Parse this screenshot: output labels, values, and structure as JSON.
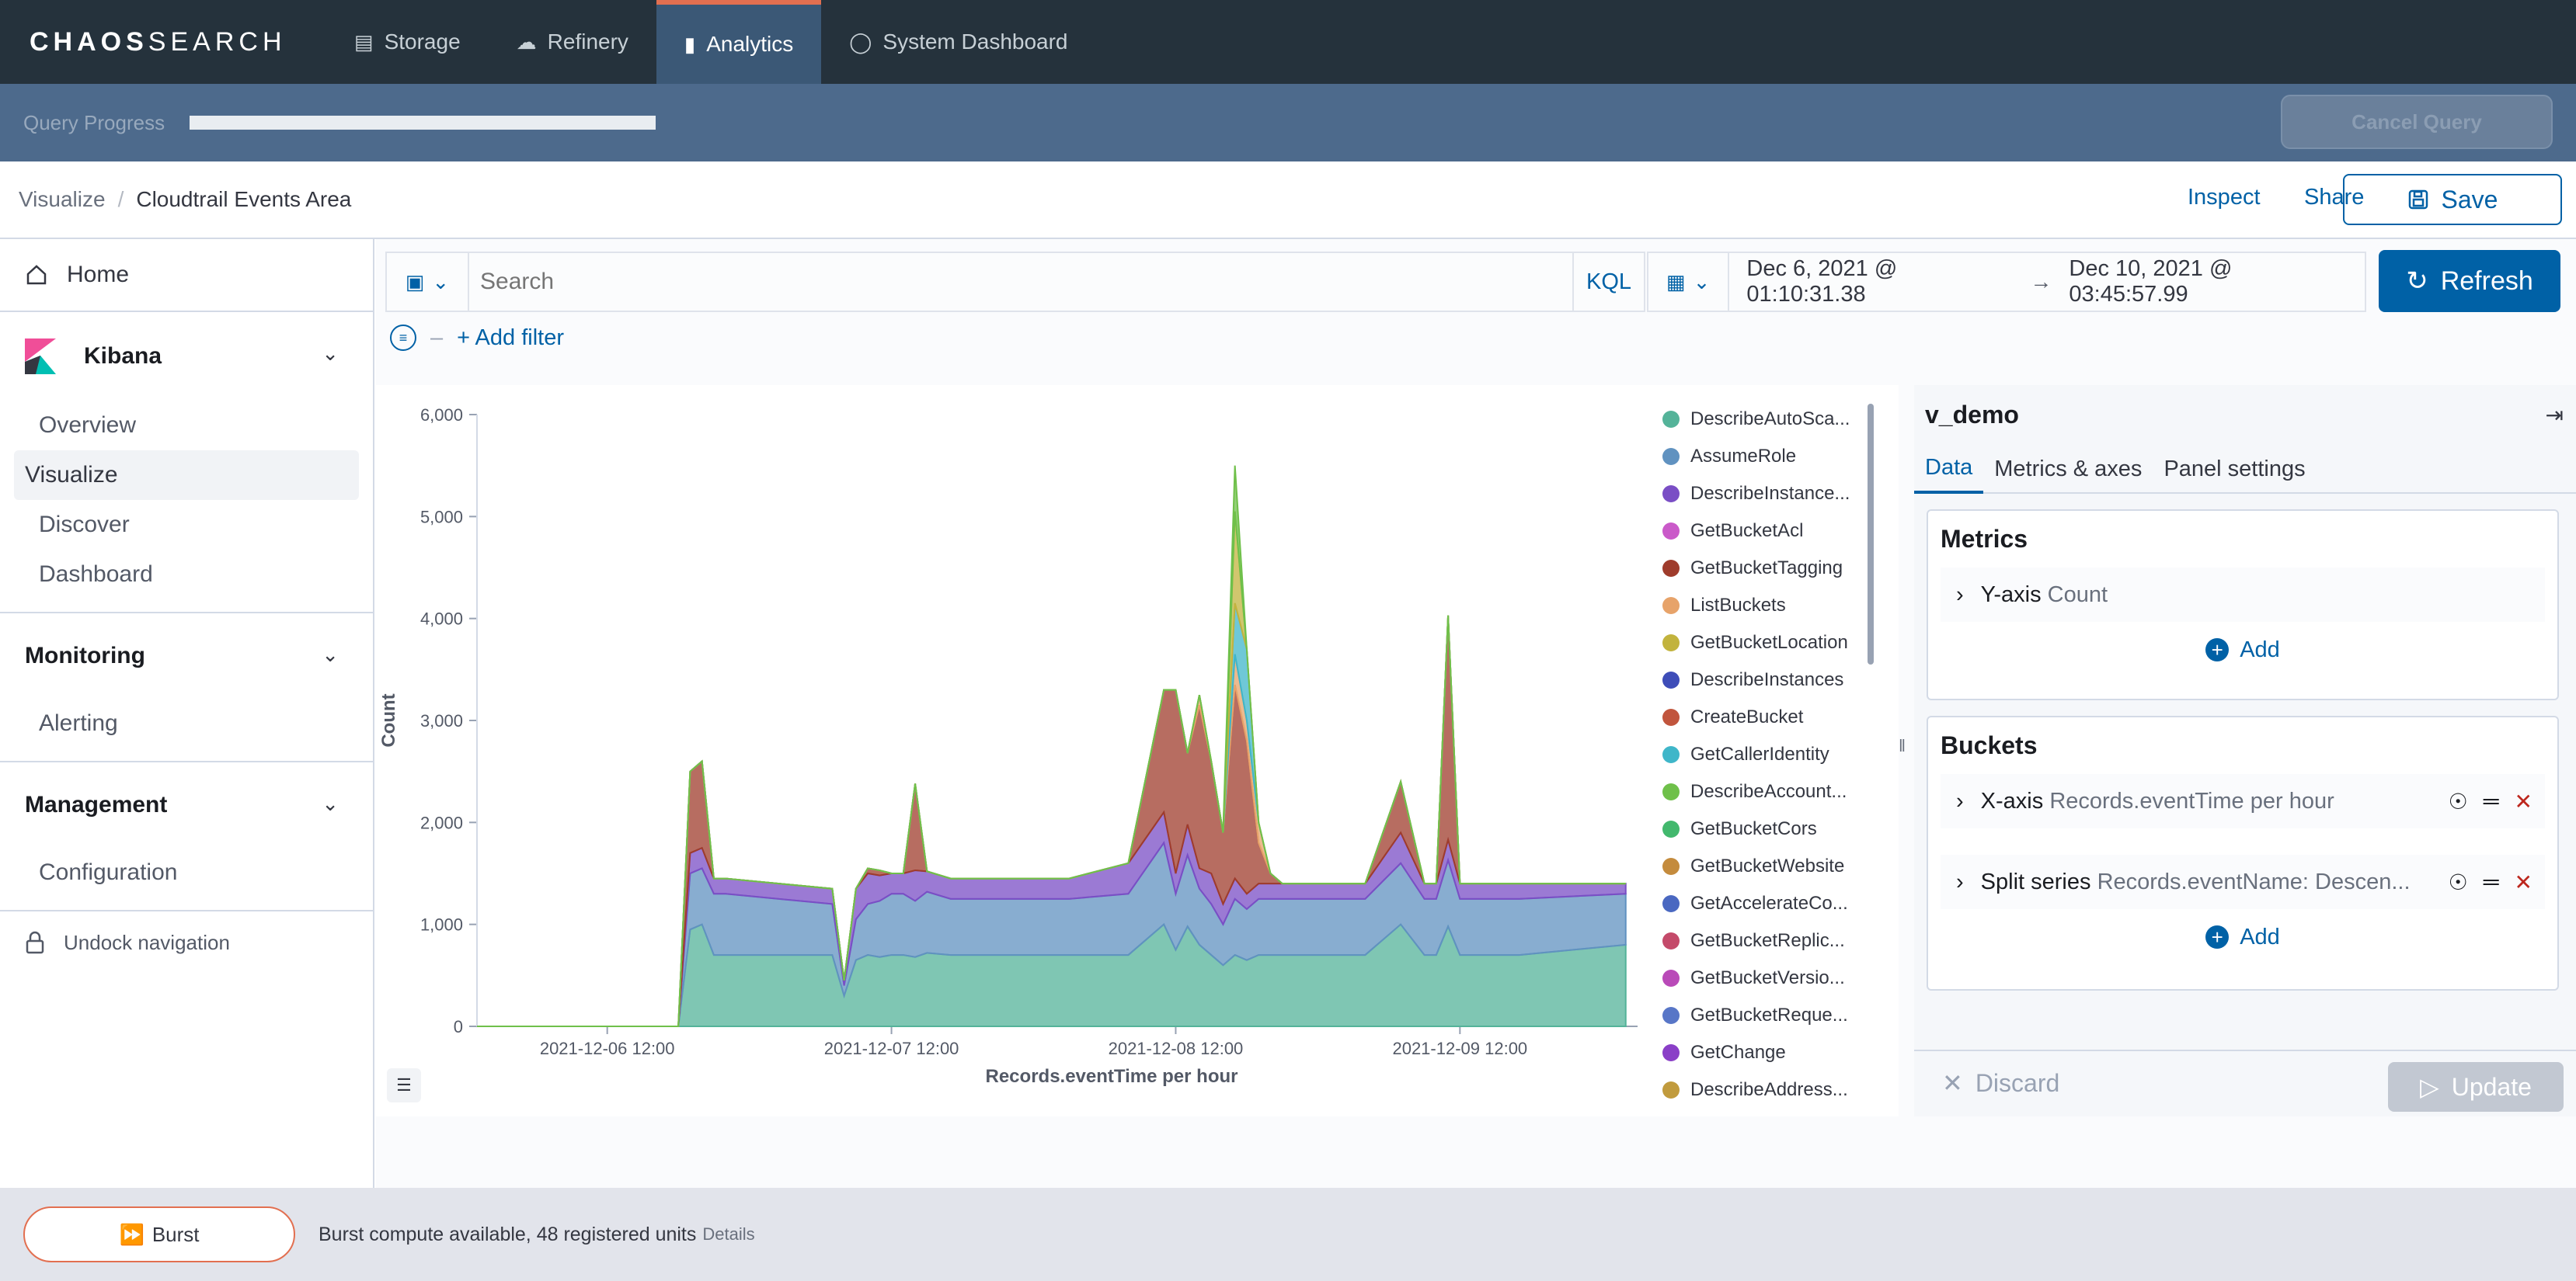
{
  "app": {
    "brand_bold": "CHAOS",
    "brand_thin": "SEARCH"
  },
  "nav": {
    "tabs": [
      {
        "label": "Storage",
        "icon": "storage-icon"
      },
      {
        "label": "Refinery",
        "icon": "cloud-icon"
      },
      {
        "label": "Analytics",
        "icon": "bar-chart-icon",
        "active": true
      },
      {
        "label": "System Dashboard",
        "icon": "dashboard-icon"
      }
    ]
  },
  "query": {
    "label": "Query Progress",
    "progress": 1.0,
    "cancel_label": "Cancel Query"
  },
  "header": {
    "crumb_parent": "Visualize",
    "crumb_current": "Cloudtrail Events Area",
    "inspect": "Inspect",
    "share": "Share",
    "save": "Save"
  },
  "sidebar": {
    "home": "Home",
    "kibana": "Kibana",
    "kibana_items": [
      "Overview",
      "Visualize",
      "Discover",
      "Dashboard"
    ],
    "monitoring": "Monitoring",
    "monitoring_items": [
      "Alerting"
    ],
    "management": "Management",
    "management_items": [
      "Configuration"
    ],
    "undock": "Undock navigation"
  },
  "search": {
    "placeholder": "Search",
    "kql": "KQL",
    "date_start": "Dec 6, 2021 @ 01:10:31.38",
    "date_end": "Dec 10, 2021 @ 03:45:57.99",
    "refresh": "Refresh",
    "add_filter": "+ Add filter"
  },
  "chart_data": {
    "type": "area",
    "xlabel": "Records.eventTime per hour",
    "ylabel": "Count",
    "ylim": [
      0,
      6000
    ],
    "yticks": [
      0,
      1000,
      2000,
      3000,
      4000,
      5000,
      6000
    ],
    "ytick_labels": [
      "0",
      "1,000",
      "2,000",
      "3,000",
      "4,000",
      "5,000",
      "6,000"
    ],
    "xticks": [
      "2021-12-06 12:00",
      "2021-12-07 12:00",
      "2021-12-08 12:00",
      "2021-12-09 12:00"
    ],
    "xtick_hours": [
      11,
      35,
      59,
      83
    ],
    "xlim_hours": [
      0,
      98
    ],
    "legend": [
      {
        "name": "DescribeAutoSca...",
        "color": "#54b399"
      },
      {
        "name": "AssumeRole",
        "color": "#6092c0"
      },
      {
        "name": "DescribeInstance...",
        "color": "#7a4ec5"
      },
      {
        "name": "GetBucketAcl",
        "color": "#ca5ac9"
      },
      {
        "name": "GetBucketTagging",
        "color": "#9f3c2c"
      },
      {
        "name": "ListBuckets",
        "color": "#e7a36a"
      },
      {
        "name": "GetBucketLocation",
        "color": "#c2b33d"
      },
      {
        "name": "DescribeInstances",
        "color": "#3e4db8"
      },
      {
        "name": "CreateBucket",
        "color": "#c1553d"
      },
      {
        "name": "GetCallerIdentity",
        "color": "#3fb6c9"
      },
      {
        "name": "DescribeAccount...",
        "color": "#6fc04a"
      },
      {
        "name": "GetBucketCors",
        "color": "#42b86d"
      },
      {
        "name": "GetBucketWebsite",
        "color": "#c48b3d"
      },
      {
        "name": "GetAccelerateCo...",
        "color": "#4a68c1"
      },
      {
        "name": "GetBucketReplic...",
        "color": "#c44a6a"
      },
      {
        "name": "GetBucketVersio...",
        "color": "#b94ab8"
      },
      {
        "name": "GetBucketReque...",
        "color": "#5876c7"
      },
      {
        "name": "GetChange",
        "color": "#8a3fc7"
      },
      {
        "name": "DescribeAddress...",
        "color": "#c19b3d"
      }
    ],
    "x_hours": [
      0,
      17,
      18,
      19,
      20,
      21,
      30,
      31,
      32,
      33,
      34,
      35,
      36,
      37,
      38,
      40,
      42,
      45,
      50,
      55,
      58,
      59,
      60,
      61,
      62,
      63,
      64,
      65,
      66,
      67,
      68,
      70,
      75,
      78,
      80,
      81,
      82,
      83,
      84,
      85,
      86,
      88,
      97
    ],
    "series": [
      {
        "name": "DescribeAutoSca...",
        "values": [
          0,
          0,
          950,
          1000,
          700,
          700,
          700,
          300,
          650,
          700,
          680,
          700,
          700,
          680,
          720,
          700,
          700,
          700,
          700,
          700,
          1000,
          750,
          980,
          800,
          700,
          600,
          700,
          650,
          700,
          700,
          700,
          700,
          700,
          1000,
          700,
          700,
          980,
          700,
          700,
          700,
          700,
          700,
          800
        ]
      },
      {
        "name": "AssumeRole",
        "values": [
          0,
          0,
          550,
          550,
          600,
          600,
          500,
          100,
          400,
          500,
          550,
          600,
          600,
          550,
          600,
          550,
          550,
          550,
          550,
          600,
          800,
          550,
          700,
          550,
          500,
          400,
          550,
          500,
          550,
          550,
          550,
          550,
          550,
          600,
          550,
          550,
          650,
          550,
          550,
          550,
          550,
          550,
          500
        ]
      },
      {
        "name": "DescribeInstance...",
        "values": [
          0,
          0,
          200,
          200,
          150,
          150,
          150,
          50,
          300,
          300,
          250,
          200,
          200,
          300,
          200,
          200,
          200,
          200,
          200,
          300,
          300,
          200,
          300,
          200,
          300,
          200,
          200,
          150,
          150,
          150,
          150,
          150,
          150,
          300,
          150,
          150,
          200,
          150,
          150,
          150,
          150,
          150,
          100
        ]
      },
      {
        "name": "GetBucketTagging",
        "values": [
          0,
          0,
          800,
          850,
          0,
          0,
          0,
          0,
          0,
          50,
          50,
          0,
          0,
          850,
          0,
          0,
          0,
          0,
          0,
          0,
          1200,
          1800,
          700,
          1600,
          1100,
          700,
          1900,
          1500,
          400,
          100,
          0,
          0,
          0,
          500,
          0,
          0,
          2200,
          0,
          0,
          0,
          0,
          0,
          0
        ]
      },
      {
        "name": "ListBuckets",
        "values": [
          0,
          0,
          0,
          0,
          0,
          0,
          0,
          0,
          0,
          0,
          0,
          0,
          0,
          0,
          0,
          0,
          0,
          0,
          0,
          0,
          0,
          0,
          0,
          100,
          0,
          0,
          300,
          200,
          200,
          0,
          0,
          0,
          0,
          0,
          0,
          0,
          0,
          0,
          0,
          0,
          0,
          0,
          0
        ]
      },
      {
        "name": "GetCallerIdentity",
        "values": [
          0,
          0,
          0,
          0,
          0,
          0,
          0,
          0,
          0,
          0,
          0,
          0,
          0,
          0,
          0,
          0,
          0,
          0,
          0,
          0,
          0,
          0,
          0,
          0,
          0,
          0,
          500,
          700,
          0,
          0,
          0,
          0,
          0,
          0,
          0,
          0,
          0,
          0,
          0,
          0,
          0,
          0,
          0
        ]
      },
      {
        "name": "GetBucketLocation",
        "values": [
          0,
          0,
          0,
          0,
          0,
          0,
          0,
          0,
          0,
          0,
          0,
          0,
          0,
          0,
          0,
          0,
          0,
          0,
          0,
          0,
          0,
          0,
          0,
          0,
          0,
          0,
          900,
          0,
          0,
          0,
          0,
          0,
          0,
          0,
          0,
          0,
          0,
          0,
          0,
          0,
          0,
          0,
          0
        ]
      },
      {
        "name": "DescribeAccount...",
        "values": [
          0,
          0,
          0,
          0,
          0,
          0,
          0,
          0,
          0,
          0,
          0,
          0,
          0,
          0,
          0,
          0,
          0,
          0,
          0,
          0,
          0,
          0,
          0,
          0,
          0,
          0,
          450,
          0,
          0,
          0,
          0,
          0,
          0,
          0,
          0,
          0,
          0,
          0,
          0,
          0,
          0,
          0,
          0
        ]
      }
    ]
  },
  "editor": {
    "title": "v_demo",
    "tabs": [
      "Data",
      "Metrics & axes",
      "Panel settings"
    ],
    "metrics_title": "Metrics",
    "metric_label": "Y-axis",
    "metric_value": "Count",
    "add": "Add",
    "buckets_title": "Buckets",
    "bucket1_label": "X-axis",
    "bucket1_value": "Records.eventTime per hour",
    "bucket2_label": "Split series",
    "bucket2_value": "Records.eventName: Descen...",
    "discard": "Discard",
    "update": "Update"
  },
  "burst": {
    "button": "Burst",
    "text": "Burst compute available, 48 registered units",
    "details": "Details"
  }
}
